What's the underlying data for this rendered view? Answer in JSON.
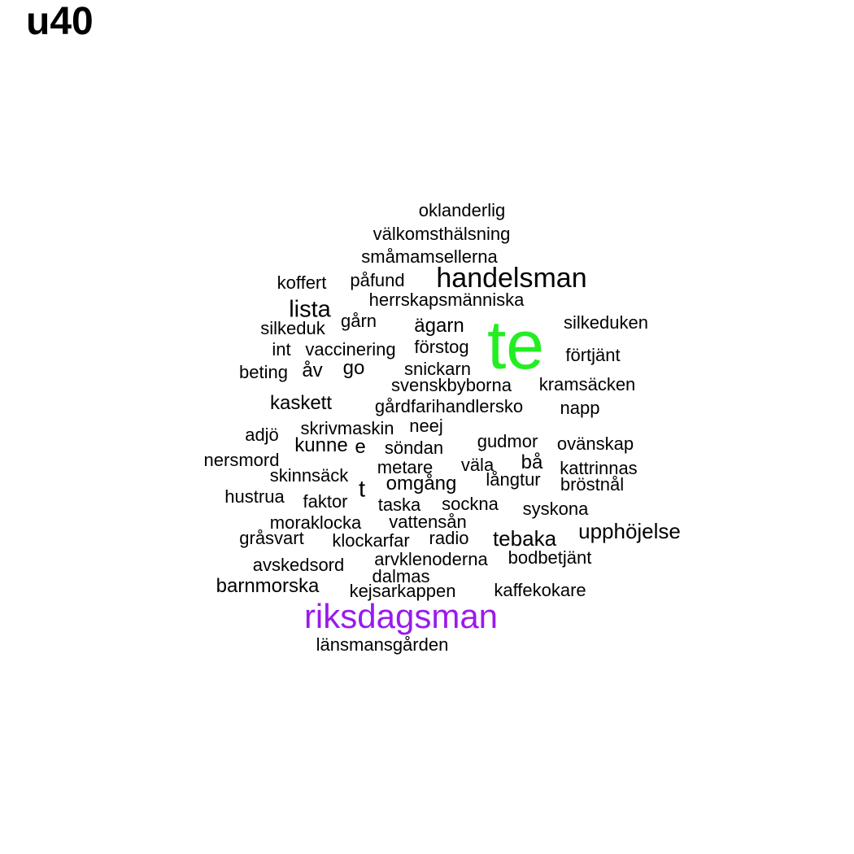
{
  "title": "u40",
  "colors": {
    "default": "#000000",
    "highlight_green": "#22ee22",
    "highlight_purple": "#9a1aee"
  },
  "words": [
    {
      "text": "oklanderlig"
    },
    {
      "text": "välkomsthälsning"
    },
    {
      "text": "småmamsellerna"
    },
    {
      "text": "koffert"
    },
    {
      "text": "påfund"
    },
    {
      "text": "handelsman"
    },
    {
      "text": "herrskapsmänniska"
    },
    {
      "text": "lista"
    },
    {
      "text": "gårn"
    },
    {
      "text": "ägarn"
    },
    {
      "text": "te",
      "color": "#22ee22"
    },
    {
      "text": "silkeduk"
    },
    {
      "text": "silkeduken"
    },
    {
      "text": "int"
    },
    {
      "text": "vaccinering"
    },
    {
      "text": "förstog"
    },
    {
      "text": "förtjänt"
    },
    {
      "text": "beting"
    },
    {
      "text": "åv"
    },
    {
      "text": "go"
    },
    {
      "text": "snickarn"
    },
    {
      "text": "svenskbyborna"
    },
    {
      "text": "kramsäcken"
    },
    {
      "text": "kaskett"
    },
    {
      "text": "gårdfarihandlersko"
    },
    {
      "text": "napp"
    },
    {
      "text": "adjö"
    },
    {
      "text": "skrivmaskin"
    },
    {
      "text": "neej"
    },
    {
      "text": "kunne"
    },
    {
      "text": "e"
    },
    {
      "text": "söndan"
    },
    {
      "text": "gudmor"
    },
    {
      "text": "ovänskap"
    },
    {
      "text": "nersmord"
    },
    {
      "text": "metare"
    },
    {
      "text": "väla"
    },
    {
      "text": "bå"
    },
    {
      "text": "kattrinnas"
    },
    {
      "text": "skinnsäck"
    },
    {
      "text": "t"
    },
    {
      "text": "omgång"
    },
    {
      "text": "långtur"
    },
    {
      "text": "bröstnål"
    },
    {
      "text": "hustrua"
    },
    {
      "text": "faktor"
    },
    {
      "text": "taska"
    },
    {
      "text": "sockna"
    },
    {
      "text": "syskona"
    },
    {
      "text": "moraklocka"
    },
    {
      "text": "vattensån"
    },
    {
      "text": "gråsvart"
    },
    {
      "text": "klockarfar"
    },
    {
      "text": "radio"
    },
    {
      "text": "tebaka"
    },
    {
      "text": "upphöjelse"
    },
    {
      "text": "avskedsord"
    },
    {
      "text": "arvklenoderna"
    },
    {
      "text": "bodbetjänt"
    },
    {
      "text": "dalmas"
    },
    {
      "text": "barnmorska"
    },
    {
      "text": "kejsarkappen"
    },
    {
      "text": "kaffekokare"
    },
    {
      "text": "riksdagsman",
      "color": "#9a1aee"
    },
    {
      "text": "länsmansgården"
    }
  ]
}
